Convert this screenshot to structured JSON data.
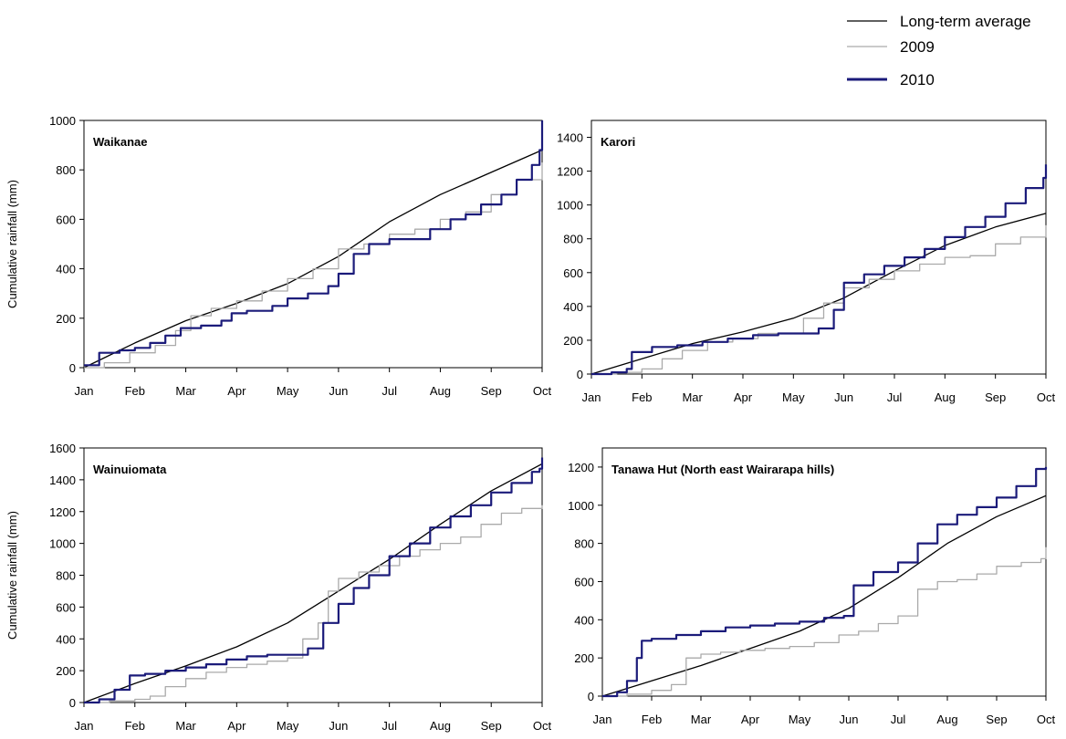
{
  "legend": {
    "entries": [
      {
        "label": "Long-term average",
        "color": "#000000"
      },
      {
        "label": "2009",
        "color": "#aaaaaa"
      },
      {
        "label": "2010",
        "color": "#1b1b7a"
      }
    ]
  },
  "chart_data": [
    {
      "type": "line",
      "title": "Waikanae",
      "xlabel": "",
      "ylabel": "Cumulative rainfall (mm)",
      "x_categories": [
        "Jan",
        "Feb",
        "Mar",
        "Apr",
        "May",
        "Jun",
        "Jul",
        "Aug",
        "Sep",
        "Oct"
      ],
      "ylim": [
        0,
        1000
      ],
      "yticks": [
        0,
        200,
        400,
        600,
        800,
        1000
      ],
      "grid": false,
      "series": [
        {
          "name": "Long-term average",
          "color": "#000000",
          "width": 1.3,
          "x": [
            0,
            1,
            2,
            3,
            4,
            5,
            6,
            7,
            8,
            9
          ],
          "y": [
            0,
            100,
            190,
            260,
            340,
            450,
            590,
            700,
            790,
            880
          ]
        },
        {
          "name": "2009",
          "color": "#aaaaaa",
          "width": 1.3,
          "x": [
            0,
            0.4,
            0.9,
            1.4,
            1.8,
            2.1,
            2.5,
            3.0,
            3.5,
            4.0,
            4.5,
            5.0,
            5.5,
            6.0,
            6.5,
            7.0,
            7.5,
            8.0,
            8.5,
            9.0
          ],
          "y": [
            0,
            20,
            60,
            90,
            150,
            210,
            240,
            270,
            310,
            360,
            400,
            480,
            500,
            540,
            560,
            600,
            630,
            700,
            760,
            830
          ]
        },
        {
          "name": "2010",
          "color": "#1b1b7a",
          "width": 2.2,
          "x": [
            0,
            0.3,
            0.7,
            1.0,
            1.3,
            1.6,
            1.9,
            2.3,
            2.7,
            2.9,
            3.2,
            3.7,
            4.0,
            4.4,
            4.8,
            5.0,
            5.3,
            5.6,
            6.0,
            6.4,
            6.8,
            7.2,
            7.5,
            7.8,
            8.2,
            8.5,
            8.8,
            8.95,
            9.0
          ],
          "y": [
            10,
            60,
            70,
            80,
            100,
            130,
            160,
            170,
            190,
            220,
            230,
            250,
            280,
            300,
            330,
            380,
            460,
            500,
            520,
            520,
            560,
            600,
            620,
            660,
            700,
            760,
            820,
            880,
            1000
          ]
        }
      ]
    },
    {
      "type": "line",
      "title": "Karori",
      "xlabel": "",
      "ylabel": "",
      "x_categories": [
        "Jan",
        "Feb",
        "Mar",
        "Apr",
        "May",
        "Jun",
        "Jul",
        "Aug",
        "Sep",
        "Oct"
      ],
      "ylim": [
        0,
        1500
      ],
      "yticks": [
        0,
        200,
        400,
        600,
        800,
        1000,
        1200,
        1400
      ],
      "grid": false,
      "series": [
        {
          "name": "Long-term average",
          "color": "#000000",
          "width": 1.3,
          "x": [
            0,
            1,
            2,
            3,
            4,
            5,
            6,
            7,
            8,
            9
          ],
          "y": [
            0,
            90,
            180,
            250,
            330,
            450,
            610,
            760,
            870,
            950
          ]
        },
        {
          "name": "2009",
          "color": "#aaaaaa",
          "width": 1.3,
          "x": [
            0,
            0.5,
            1.0,
            1.4,
            1.8,
            2.3,
            2.8,
            3.3,
            3.8,
            4.2,
            4.6,
            5.0,
            5.5,
            6.0,
            6.5,
            7.0,
            7.5,
            8.0,
            8.5,
            9.0
          ],
          "y": [
            0,
            10,
            30,
            90,
            140,
            190,
            210,
            240,
            240,
            330,
            420,
            510,
            560,
            610,
            650,
            690,
            700,
            770,
            810,
            880
          ]
        },
        {
          "name": "2010",
          "color": "#1b1b7a",
          "width": 2.2,
          "x": [
            0,
            0.4,
            0.7,
            0.8,
            1.2,
            1.7,
            2.2,
            2.7,
            3.2,
            3.7,
            4.1,
            4.5,
            4.8,
            5.0,
            5.4,
            5.8,
            6.2,
            6.6,
            7.0,
            7.4,
            7.8,
            8.2,
            8.6,
            8.95,
            9.0
          ],
          "y": [
            0,
            10,
            30,
            130,
            160,
            170,
            190,
            210,
            230,
            240,
            240,
            270,
            380,
            540,
            590,
            640,
            690,
            740,
            810,
            870,
            930,
            1010,
            1100,
            1160,
            1240
          ]
        }
      ]
    },
    {
      "type": "line",
      "title": "Wainuiomata",
      "xlabel": "",
      "ylabel": "Cumulative rainfall (mm)",
      "x_categories": [
        "Jan",
        "Feb",
        "Mar",
        "Apr",
        "May",
        "Jun",
        "Jul",
        "Aug",
        "Sep",
        "Oct"
      ],
      "ylim": [
        0,
        1600
      ],
      "yticks": [
        0,
        200,
        400,
        600,
        800,
        1000,
        1200,
        1400,
        1600
      ],
      "grid": false,
      "series": [
        {
          "name": "Long-term average",
          "color": "#000000",
          "width": 1.3,
          "x": [
            0,
            1,
            2,
            3,
            4,
            5,
            6,
            7,
            8,
            9
          ],
          "y": [
            0,
            120,
            230,
            350,
            500,
            700,
            900,
            1120,
            1330,
            1500
          ]
        },
        {
          "name": "2009",
          "color": "#aaaaaa",
          "width": 1.3,
          "x": [
            0,
            0.5,
            1.0,
            1.3,
            1.6,
            2.0,
            2.4,
            2.8,
            3.2,
            3.6,
            4.0,
            4.3,
            4.6,
            4.8,
            5.0,
            5.4,
            5.8,
            6.2,
            6.6,
            7.0,
            7.4,
            7.8,
            8.2,
            8.6,
            9.0
          ],
          "y": [
            0,
            10,
            20,
            40,
            100,
            150,
            190,
            220,
            240,
            260,
            280,
            400,
            500,
            700,
            780,
            820,
            860,
            920,
            960,
            1000,
            1040,
            1120,
            1190,
            1220,
            1240
          ]
        },
        {
          "name": "2010",
          "color": "#1b1b7a",
          "width": 2.2,
          "x": [
            0,
            0.3,
            0.6,
            0.9,
            1.2,
            1.6,
            2.0,
            2.4,
            2.8,
            3.2,
            3.6,
            4.0,
            4.4,
            4.7,
            5.0,
            5.3,
            5.6,
            6.0,
            6.4,
            6.8,
            7.2,
            7.6,
            8.0,
            8.4,
            8.8,
            8.95,
            9.0
          ],
          "y": [
            0,
            20,
            80,
            170,
            180,
            200,
            220,
            240,
            270,
            290,
            300,
            300,
            340,
            500,
            620,
            720,
            800,
            920,
            1000,
            1100,
            1170,
            1240,
            1320,
            1380,
            1450,
            1470,
            1540
          ]
        }
      ]
    },
    {
      "type": "line",
      "title": "Tanawa Hut (North east Wairarapa hills)",
      "xlabel": "",
      "ylabel": "",
      "x_categories": [
        "Jan",
        "Feb",
        "Mar",
        "Apr",
        "May",
        "Jun",
        "Jul",
        "Aug",
        "Sep",
        "Oct"
      ],
      "ylim": [
        0,
        1300
      ],
      "yticks": [
        0,
        200,
        400,
        600,
        800,
        1000,
        1200
      ],
      "grid": false,
      "series": [
        {
          "name": "Long-term average",
          "color": "#000000",
          "width": 1.3,
          "x": [
            0,
            1,
            2,
            3,
            4,
            5,
            6,
            7,
            8,
            9
          ],
          "y": [
            0,
            80,
            160,
            250,
            340,
            460,
            620,
            800,
            940,
            1050
          ]
        },
        {
          "name": "2009",
          "color": "#aaaaaa",
          "width": 1.3,
          "x": [
            0,
            0.5,
            1.0,
            1.4,
            1.7,
            2.0,
            2.4,
            2.8,
            3.3,
            3.8,
            4.3,
            4.8,
            5.2,
            5.6,
            6.0,
            6.4,
            6.8,
            7.2,
            7.6,
            8.0,
            8.5,
            8.9,
            9.0
          ],
          "y": [
            0,
            10,
            30,
            60,
            200,
            220,
            230,
            240,
            250,
            260,
            280,
            320,
            340,
            380,
            420,
            560,
            600,
            610,
            640,
            680,
            700,
            720,
            780
          ]
        },
        {
          "name": "2010",
          "color": "#1b1b7a",
          "width": 2.2,
          "x": [
            0,
            0.3,
            0.5,
            0.7,
            0.8,
            1.0,
            1.5,
            2.0,
            2.5,
            3.0,
            3.5,
            4.0,
            4.5,
            4.9,
            5.1,
            5.5,
            6.0,
            6.4,
            6.8,
            7.2,
            7.6,
            8.0,
            8.4,
            8.8,
            9.0
          ],
          "y": [
            0,
            20,
            80,
            200,
            290,
            300,
            320,
            340,
            360,
            370,
            380,
            390,
            410,
            420,
            580,
            650,
            700,
            800,
            900,
            950,
            990,
            1040,
            1100,
            1190,
            1200
          ]
        }
      ]
    }
  ]
}
